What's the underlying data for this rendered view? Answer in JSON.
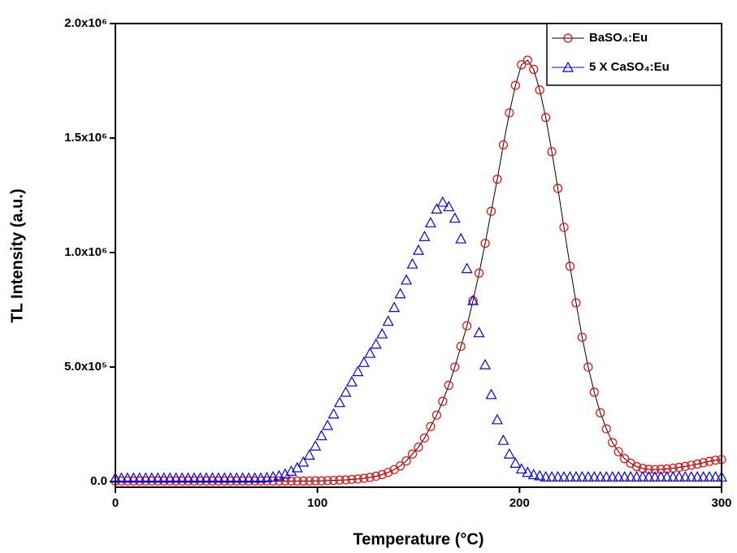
{
  "chart_data": {
    "type": "scatter",
    "x_label": "Temperature (°C)",
    "y_label": "TL Intensity (a.u.)",
    "xlim": [
      0,
      300
    ],
    "ylim": [
      -25000,
      2000000
    ],
    "xticks": [
      0,
      100,
      200,
      300
    ],
    "yticks": [
      {
        "value": 0,
        "label": "0.0"
      },
      {
        "value": 500000,
        "label": "5.0x10⁵"
      },
      {
        "value": 1000000,
        "label": "1.0x10⁶"
      },
      {
        "value": 1500000,
        "label": "1.5x10⁶"
      },
      {
        "value": 2000000,
        "label": "2.0x10⁶"
      }
    ],
    "legend": "upper right",
    "x": [
      0,
      3,
      6,
      9,
      12,
      15,
      18,
      21,
      24,
      27,
      30,
      33,
      36,
      39,
      42,
      45,
      48,
      51,
      54,
      57,
      60,
      63,
      66,
      69,
      72,
      75,
      78,
      81,
      84,
      87,
      90,
      93,
      96,
      99,
      102,
      105,
      108,
      111,
      114,
      117,
      120,
      123,
      126,
      129,
      132,
      135,
      138,
      141,
      144,
      147,
      150,
      153,
      156,
      159,
      162,
      165,
      168,
      171,
      174,
      177,
      180,
      183,
      186,
      189,
      192,
      195,
      198,
      201,
      204,
      207,
      210,
      213,
      216,
      219,
      222,
      225,
      228,
      231,
      234,
      237,
      240,
      243,
      246,
      249,
      252,
      255,
      258,
      261,
      264,
      267,
      270,
      273,
      276,
      279,
      282,
      285,
      288,
      291,
      294,
      297,
      300
    ],
    "series": [
      {
        "name": "BaSO₄:Eu",
        "color": "#ff0000",
        "marker": "circle",
        "line": true,
        "values": [
          2000,
          2000,
          2000,
          2000,
          2000,
          2000,
          2000,
          2000,
          2000,
          2000,
          2000,
          2000,
          2000,
          2000,
          2000,
          2000,
          2000,
          2000,
          2000,
          2000,
          2000,
          2000,
          2000,
          2000,
          2000,
          2000,
          2000,
          2000,
          2000,
          2000,
          2000,
          2000,
          2000,
          3000,
          3000,
          4000,
          5000,
          6000,
          7000,
          9000,
          11000,
          14000,
          18000,
          23000,
          30000,
          40000,
          52000,
          68000,
          90000,
          120000,
          150000,
          190000,
          240000,
          290000,
          350000,
          420000,
          500000,
          590000,
          680000,
          790000,
          910000,
          1040000,
          1180000,
          1320000,
          1470000,
          1610000,
          1730000,
          1820000,
          1840000,
          1800000,
          1710000,
          1590000,
          1440000,
          1280000,
          1110000,
          940000,
          780000,
          630000,
          500000,
          390000,
          300000,
          230000,
          170000,
          130000,
          100000,
          80000,
          65000,
          57000,
          53000,
          52000,
          53000,
          55000,
          58000,
          62000,
          66000,
          71000,
          76000,
          82000,
          88000,
          93000,
          96000
        ]
      },
      {
        "name": "5 X CaSO₄:Eu",
        "color": "#0000ff",
        "marker": "triangle",
        "line": false,
        "values": [
          15000,
          15000,
          15000,
          15000,
          15000,
          15000,
          15000,
          15000,
          15000,
          15000,
          15000,
          15000,
          15000,
          15000,
          15000,
          15000,
          15000,
          15000,
          15000,
          15000,
          15000,
          15000,
          15000,
          15000,
          15000,
          17000,
          20000,
          25000,
          32000,
          45000,
          60000,
          85000,
          115000,
          155000,
          200000,
          245000,
          295000,
          345000,
          390000,
          435000,
          480000,
          520000,
          560000,
          600000,
          645000,
          700000,
          760000,
          820000,
          880000,
          950000,
          1010000,
          1070000,
          1130000,
          1190000,
          1220000,
          1200000,
          1150000,
          1060000,
          930000,
          790000,
          650000,
          510000,
          380000,
          270000,
          180000,
          120000,
          80000,
          55000,
          40000,
          30000,
          25000,
          20000,
          20000,
          20000,
          20000,
          20000,
          20000,
          20000,
          20000,
          20000,
          20000,
          20000,
          20000,
          20000,
          20000,
          20000,
          20000,
          20000,
          20000,
          20000,
          20000,
          20000,
          20000,
          20000,
          20000,
          20000,
          20000,
          20000,
          20000,
          20000,
          20000
        ]
      }
    ]
  }
}
